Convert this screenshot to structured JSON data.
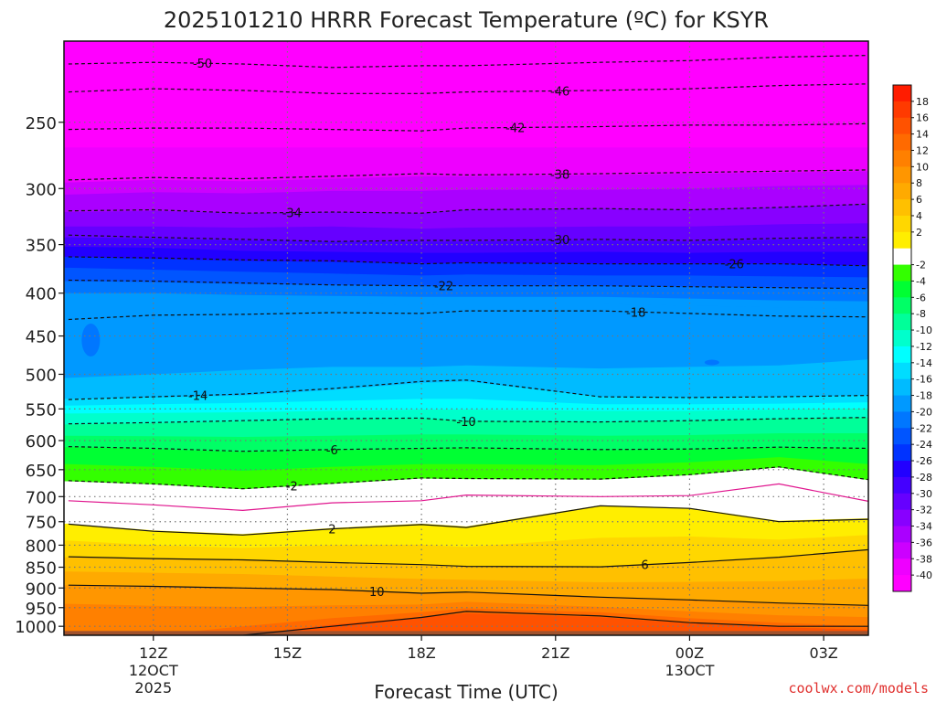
{
  "chart_data": {
    "type": "heatmap",
    "title": "2025101210 HRRR Forecast Temperature (ºC) for KSYR",
    "xlabel": "Forecast Time (UTC)",
    "ylabel": "",
    "credit": "coolwx.com/models",
    "y_ticks": [
      "250",
      "300",
      "350",
      "400",
      "450",
      "500",
      "550",
      "600",
      "650",
      "700",
      "750",
      "800",
      "850",
      "900",
      "950",
      "1000"
    ],
    "x_ticks": [
      {
        "hour": 12,
        "lines": [
          "12Z",
          "12OCT",
          "2025"
        ]
      },
      {
        "hour": 15,
        "lines": [
          "15Z"
        ]
      },
      {
        "hour": 18,
        "lines": [
          "18Z"
        ]
      },
      {
        "hour": 21,
        "lines": [
          "21Z"
        ]
      },
      {
        "hour": 24,
        "lines": [
          "00Z",
          "13OCT"
        ]
      },
      {
        "hour": 27,
        "lines": [
          "03Z"
        ]
      }
    ],
    "xlim": [
      10,
      28
    ],
    "ylim_hPa": [
      200,
      1025
    ],
    "colorbar": {
      "labels": [
        "18",
        "16",
        "14",
        "12",
        "10",
        "8",
        "6",
        "4",
        "2",
        "-2",
        "-4",
        "-6",
        "-8",
        "-10",
        "-12",
        "-14",
        "-16",
        "-18",
        "-20",
        "-22",
        "-24",
        "-26",
        "-28",
        "-30",
        "-32",
        "-34",
        "-36",
        "-38",
        "-40"
      ],
      "colors": [
        "#ff1c00",
        "#ff3a00",
        "#ff5200",
        "#ff6a00",
        "#ff8000",
        "#ff9600",
        "#ffaa00",
        "#ffc000",
        "#ffd700",
        "#ffee00",
        "#ffffff",
        "#33ff00",
        "#00ff33",
        "#00ff66",
        "#00ff99",
        "#00ffcc",
        "#00ffff",
        "#00ddff",
        "#00bbff",
        "#0099ff",
        "#0077ff",
        "#0055ff",
        "#0033ff",
        "#2200ff",
        "#4400ff",
        "#6600ff",
        "#8800ff",
        "#aa00ff",
        "#cc00ff",
        "#ee00ff",
        "#ff00ff"
      ]
    },
    "contours": [
      {
        "value": -50,
        "pressure": [
          213,
          212,
          213,
          215,
          214,
          214,
          212,
          211,
          209,
          208
        ],
        "label_hour": 13.1
      },
      {
        "value": -46,
        "pressure": [
          230,
          228,
          229,
          231,
          231,
          230,
          229,
          228,
          226,
          225
        ],
        "label_hour": 21.1
      },
      {
        "value": -42,
        "pressure": [
          255,
          254,
          254,
          255,
          256,
          254,
          253,
          252,
          252,
          251
        ],
        "label_hour": 20.1
      },
      {
        "value": -38,
        "pressure": [
          293,
          291,
          292,
          290,
          288,
          289,
          288,
          287,
          286,
          285
        ],
        "label_hour": 21.1
      },
      {
        "value": -34,
        "pressure": [
          319,
          318,
          321,
          320,
          321,
          318,
          317,
          318,
          316,
          313
        ],
        "label_hour": 15.1
      },
      {
        "value": -30,
        "pressure": [
          341,
          343,
          345,
          347,
          346,
          346,
          345,
          346,
          344,
          343
        ],
        "label_hour": 21.1
      },
      {
        "value": -26,
        "pressure": [
          362,
          363,
          365,
          366,
          369,
          368,
          369,
          369,
          369,
          371
        ],
        "label_hour": 25.0
      },
      {
        "value": -22,
        "pressure": [
          386,
          387,
          389,
          391,
          392,
          392,
          392,
          393,
          394,
          395
        ],
        "label_hour": 18.5
      },
      {
        "value": -18,
        "pressure": [
          430,
          425,
          424,
          422,
          423,
          420,
          420,
          423,
          426,
          427
        ],
        "label_hour": 22.8
      },
      {
        "value": -14,
        "pressure": [
          536,
          532,
          528,
          520,
          510,
          508,
          532,
          533,
          532,
          530
        ],
        "label_hour": 13.0
      },
      {
        "value": -10,
        "pressure": [
          573,
          571,
          568,
          565,
          564,
          569,
          570,
          568,
          565,
          563
        ],
        "label_hour": 19.0
      },
      {
        "value": -6,
        "pressure": [
          610,
          613,
          618,
          615,
          613,
          612,
          615,
          614,
          611,
          613
        ],
        "label_hour": 16.0
      },
      {
        "value": -2,
        "pressure": [
          670,
          676,
          685,
          675,
          665,
          666,
          667,
          659,
          645,
          668
        ],
        "label_hour": 15.1
      },
      {
        "value": 0,
        "pressure": [
          708,
          716,
          727,
          712,
          708,
          697,
          700,
          698,
          676,
          709
        ],
        "label_hour": null
      },
      {
        "value": 2,
        "pressure": [
          755,
          770,
          778,
          765,
          756,
          762,
          718,
          723,
          750,
          745
        ],
        "label_hour": 16.0
      },
      {
        "value": 6,
        "pressure": [
          826,
          830,
          833,
          839,
          844,
          848,
          849,
          839,
          827,
          810
        ],
        "label_hour": 23.0
      },
      {
        "value": 10,
        "pressure": [
          893,
          896,
          900,
          904,
          913,
          910,
          923,
          930,
          938,
          944
        ],
        "label_hour": 17.0
      },
      {
        "value": 14,
        "pressure": [
          1025,
          1025,
          1025,
          1000,
          976,
          960,
          972,
          990,
          1000,
          1000
        ],
        "label_hour": null
      }
    ],
    "contour_hours": [
      10.1,
      12,
      14,
      16,
      18,
      19,
      22,
      24,
      26,
      28
    ],
    "fill_levels": [
      {
        "color": "#ff00ff",
        "top": 200,
        "bottom": [
          268,
          268,
          268,
          268,
          268,
          268,
          268,
          268,
          268,
          268
        ]
      },
      {
        "color": "#ee00ff",
        "top": 200,
        "bottom": [
          295,
          293,
          294,
          292,
          290,
          290,
          289,
          288,
          287,
          286
        ]
      },
      {
        "color": "#cc00ff",
        "top": 200,
        "bottom": [
          305,
          303,
          304,
          302,
          302,
          301,
          301,
          300,
          298,
          297
        ]
      },
      {
        "color": "#aa00ff",
        "top": 200,
        "bottom": [
          320,
          319,
          321,
          320,
          321,
          318,
          317,
          318,
          316,
          313
        ]
      },
      {
        "color": "#8800ff",
        "top": 200,
        "bottom": [
          333,
          333,
          334,
          333,
          335,
          334,
          333,
          333,
          331,
          330
        ]
      },
      {
        "color": "#6600ff",
        "top": 200,
        "bottom": [
          343,
          344,
          346,
          347,
          347,
          347,
          346,
          347,
          345,
          344
        ]
      },
      {
        "color": "#4400ff",
        "top": 200,
        "bottom": [
          352,
          353,
          356,
          357,
          358,
          358,
          357,
          358,
          357,
          357
        ]
      },
      {
        "color": "#2200ff",
        "top": 200,
        "bottom": [
          362,
          364,
          366,
          367,
          369,
          368,
          369,
          369,
          369,
          371
        ]
      },
      {
        "color": "#0033ff",
        "top": 200,
        "bottom": [
          373,
          375,
          377,
          379,
          381,
          380,
          381,
          381,
          382,
          383
        ]
      },
      {
        "color": "#0055ff",
        "top": 200,
        "bottom": [
          387,
          388,
          390,
          391,
          392,
          392,
          392,
          393,
          394,
          395
        ]
      },
      {
        "color": "#0077ff",
        "top": 200,
        "bottom": [
          400,
          400,
          402,
          403,
          404,
          404,
          404,
          406,
          408,
          409
        ]
      },
      {
        "color": "#0099ff",
        "top": 200,
        "bottom": [
          412,
          412,
          412,
          412,
          413,
          412,
          412,
          414,
          416,
          418
        ]
      },
      {
        "color": "#0099ff",
        "top": 200,
        "bottom": [
          505,
          500,
          494,
          490,
          490,
          488,
          492,
          490,
          488,
          480
        ]
      },
      {
        "color": "#00bbff",
        "top": 200,
        "bottom": [
          535,
          533,
          530,
          522,
          512,
          510,
          532,
          533,
          532,
          530
        ]
      },
      {
        "color": "#00ddff",
        "top": 200,
        "bottom": [
          545,
          543,
          541,
          538,
          535,
          535,
          543,
          543,
          542,
          540
        ]
      },
      {
        "color": "#00ffff",
        "top": 200,
        "bottom": [
          557,
          556,
          555,
          553,
          551,
          551,
          553,
          553,
          551,
          549
        ]
      },
      {
        "color": "#00ffcc",
        "top": 200,
        "bottom": [
          574,
          572,
          569,
          566,
          565,
          568,
          570,
          568,
          565,
          563
        ]
      },
      {
        "color": "#00ff99",
        "top": 200,
        "bottom": [
          592,
          593,
          594,
          592,
          590,
          590,
          592,
          591,
          588,
          588
        ]
      },
      {
        "color": "#00ff66",
        "top": 200,
        "bottom": [
          611,
          614,
          619,
          616,
          614,
          613,
          616,
          615,
          612,
          614
        ]
      },
      {
        "color": "#00ff33",
        "top": 200,
        "bottom": [
          640,
          645,
          652,
          645,
          640,
          640,
          642,
          637,
          628,
          640
        ]
      },
      {
        "color": "#33ff00",
        "top": 200,
        "bottom": [
          671,
          677,
          686,
          676,
          666,
          667,
          668,
          660,
          646,
          669
        ]
      },
      {
        "color": "#ffffff",
        "top": 200,
        "bottom": [
          754,
          768,
          776,
          763,
          754,
          760,
          717,
          722,
          748,
          743
        ]
      },
      {
        "color": "#ffee00",
        "top": 200,
        "bottom": [
          790,
          800,
          806,
          800,
          799,
          804,
          784,
          781,
          788,
          778
        ]
      },
      {
        "color": "#ffd700",
        "top": 200,
        "bottom": [
          827,
          831,
          834,
          840,
          845,
          849,
          850,
          840,
          828,
          811
        ]
      },
      {
        "color": "#ffc000",
        "top": 200,
        "bottom": [
          860,
          863,
          866,
          872,
          878,
          880,
          886,
          885,
          883,
          877
        ]
      },
      {
        "color": "#ffaa00",
        "top": 200,
        "bottom": [
          893,
          896,
          900,
          904,
          913,
          910,
          923,
          930,
          938,
          944
        ]
      },
      {
        "color": "#ff9600",
        "top": 200,
        "bottom": [
          940,
          945,
          948,
          944,
          942,
          935,
          948,
          960,
          970,
          975
        ]
      },
      {
        "color": "#ff8000",
        "top": 200,
        "bottom": [
          1025,
          1025,
          1000,
          978,
          962,
          952,
          962,
          978,
          990,
          1000
        ]
      },
      {
        "color": "#ff6a00",
        "top": 200,
        "bottom": [
          1025,
          1025,
          1025,
          995,
          976,
          965,
          975,
          992,
          1002,
          1010
        ]
      },
      {
        "color": "#ff5200",
        "top": 200,
        "bottom": [
          1025,
          1025,
          1025,
          1012,
          990,
          978,
          990,
          1008,
          1018,
          1025
        ]
      }
    ],
    "surface_color": "#a0522d",
    "surface_pressure": 1013
  }
}
